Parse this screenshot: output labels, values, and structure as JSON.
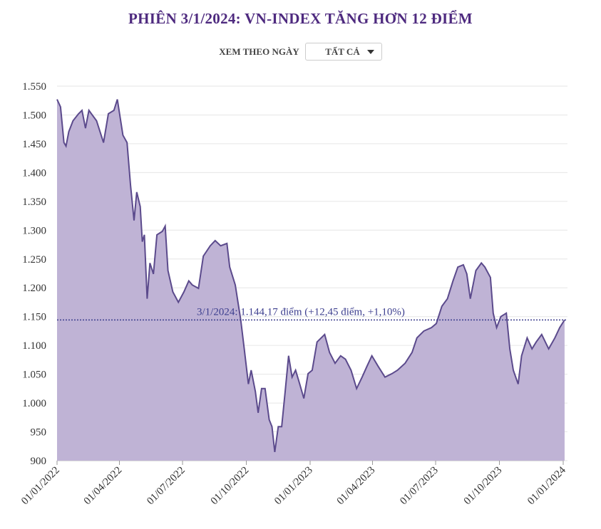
{
  "header": {
    "title": "PHIÊN 3/1/2024: VN-INDEX TĂNG HƠN 12 ĐIỂM"
  },
  "filter": {
    "label": "XEM THEO NGÀY",
    "selected": "TẤT CẢ",
    "icon": "caret-down-icon"
  },
  "chart_data": {
    "type": "area",
    "title": "PHIÊN 3/1/2024: VN-INDEX TĂNG HƠN 12 ĐIỂM",
    "xlabel": "",
    "ylabel": "",
    "ylim": [
      900,
      1550
    ],
    "xlim": [
      "2022-01-01",
      "2024-01-01"
    ],
    "yticks": [
      900,
      950,
      1000,
      1050,
      1100,
      1150,
      1200,
      1250,
      1300,
      1350,
      1400,
      1450,
      1500,
      1550
    ],
    "ytick_labels": [
      "900",
      "950",
      "1.000",
      "1.050",
      "1.100",
      "1.150",
      "1.200",
      "1.250",
      "1.300",
      "1.350",
      "1.400",
      "1.450",
      "1.500",
      "1.550"
    ],
    "xticks": [
      "2022-01-01",
      "2022-04-01",
      "2022-07-01",
      "2022-10-01",
      "2023-01-01",
      "2023-04-01",
      "2023-07-01",
      "2023-10-01",
      "2024-01-01"
    ],
    "xtick_labels": [
      "01/01/2022",
      "01/04/2022",
      "01/07/2022",
      "01/10/2022",
      "01/01/2023",
      "01/04/2023",
      "01/07/2023",
      "01/10/2023",
      "01/01/2024"
    ],
    "grid": true,
    "colors": {
      "line": "#5b4a8c",
      "fill": "#bfb3d5",
      "reference": "#3d3f8f"
    },
    "reference_line": {
      "value": 1144.17,
      "label": "3/1/2024: 1.144,17 điểm (+12,45 điểm, +1,10%)"
    },
    "series": [
      {
        "x": [
          "2022-01-01",
          "2022-01-06",
          "2022-01-11",
          "2022-01-14",
          "2022-01-18",
          "2022-01-24",
          "2022-02-01",
          "2022-02-06",
          "2022-02-11",
          "2022-02-16",
          "2022-02-27",
          "2022-03-09",
          "2022-03-16",
          "2022-03-24",
          "2022-03-29",
          "2022-04-06",
          "2022-04-12",
          "2022-04-17",
          "2022-04-22",
          "2022-04-26",
          "2022-05-01",
          "2022-05-04",
          "2022-05-07",
          "2022-05-11",
          "2022-05-15",
          "2022-05-20",
          "2022-05-25",
          "2022-06-02",
          "2022-06-06",
          "2022-06-10",
          "2022-06-17",
          "2022-06-25",
          "2022-07-03",
          "2022-07-10",
          "2022-07-15",
          "2022-07-24",
          "2022-07-31",
          "2022-08-10",
          "2022-08-17",
          "2022-08-25",
          "2022-09-03",
          "2022-09-07",
          "2022-09-15",
          "2022-09-23",
          "2022-09-28",
          "2022-10-04",
          "2022-10-08",
          "2022-10-14",
          "2022-10-18",
          "2022-10-23",
          "2022-10-28",
          "2022-11-03",
          "2022-11-07",
          "2022-11-11",
          "2022-11-16",
          "2022-11-21",
          "2022-11-26",
          "2022-12-01",
          "2022-12-06",
          "2022-12-11",
          "2022-12-17",
          "2022-12-23",
          "2022-12-29",
          "2023-01-04",
          "2023-01-11",
          "2023-01-22",
          "2023-01-29",
          "2023-02-06",
          "2023-02-14",
          "2023-02-21",
          "2023-03-01",
          "2023-03-09",
          "2023-03-17",
          "2023-03-24",
          "2023-03-31",
          "2023-04-09",
          "2023-04-19",
          "2023-04-29",
          "2023-05-07",
          "2023-05-18",
          "2023-05-28",
          "2023-06-04",
          "2023-06-14",
          "2023-06-25",
          "2023-07-02",
          "2023-07-10",
          "2023-07-18",
          "2023-07-26",
          "2023-08-02",
          "2023-08-10",
          "2023-08-15",
          "2023-08-20",
          "2023-08-28",
          "2023-09-05",
          "2023-09-10",
          "2023-09-18",
          "2023-09-22",
          "2023-09-27",
          "2023-10-03",
          "2023-10-11",
          "2023-10-16",
          "2023-10-21",
          "2023-10-28",
          "2023-11-02",
          "2023-11-10",
          "2023-11-17",
          "2023-11-23",
          "2023-12-01",
          "2023-12-11",
          "2023-12-20",
          "2023-12-27",
          "2024-01-03"
        ],
        "y": [
          1527,
          1514,
          1452,
          1446,
          1471,
          1490,
          1502,
          1508,
          1477,
          1508,
          1490,
          1452,
          1502,
          1508,
          1527,
          1465,
          1452,
          1378,
          1317,
          1366,
          1341,
          1280,
          1292,
          1181,
          1243,
          1224,
          1292,
          1298,
          1307,
          1230,
          1193,
          1175,
          1193,
          1212,
          1205,
          1199,
          1255,
          1273,
          1282,
          1273,
          1277,
          1236,
          1205,
          1144,
          1094,
          1033,
          1057,
          1020,
          983,
          1025,
          1025,
          971,
          959,
          915,
          959,
          959,
          1020,
          1082,
          1045,
          1057,
          1033,
          1008,
          1051,
          1057,
          1106,
          1119,
          1088,
          1069,
          1082,
          1076,
          1057,
          1025,
          1045,
          1064,
          1082,
          1064,
          1045,
          1051,
          1057,
          1069,
          1088,
          1113,
          1125,
          1131,
          1138,
          1168,
          1181,
          1212,
          1236,
          1240,
          1224,
          1181,
          1230,
          1243,
          1236,
          1218,
          1156,
          1131,
          1150,
          1156,
          1094,
          1057,
          1033,
          1082,
          1113,
          1094,
          1106,
          1119,
          1094,
          1113,
          1131,
          1144.17
        ]
      }
    ]
  }
}
